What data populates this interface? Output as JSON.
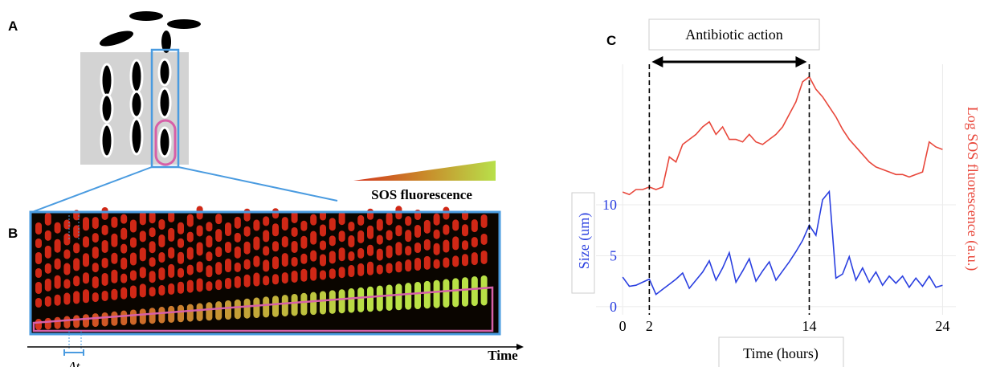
{
  "figure": {
    "panel_a": "A",
    "panel_b": "B",
    "panel_c": "C",
    "legend_label": "SOS fluorescence",
    "time_label": "Time",
    "interval_label": "Δt"
  },
  "chart_data": {
    "type": "line",
    "annotation": "Antibiotic action",
    "x_label": "Time (hours)",
    "y_label": "Size (um)",
    "y2_label": "Log SOS fluorescence (a.u.)",
    "x": [
      0,
      0.5,
      1,
      1.5,
      2,
      2.5,
      3,
      3.5,
      4,
      4.5,
      5,
      5.5,
      6,
      6.5,
      7,
      7.5,
      8,
      8.5,
      9,
      9.5,
      10,
      10.5,
      11,
      11.5,
      12,
      12.5,
      13,
      13.5,
      14,
      14.5,
      15,
      15.5,
      16,
      16.5,
      17,
      17.5,
      18,
      18.5,
      19,
      19.5,
      20,
      20.5,
      21,
      21.5,
      22,
      22.5,
      23,
      23.5,
      24
    ],
    "series": [
      {
        "color": "#2a3fe0",
        "axis": "y",
        "values": [
          2.9,
          2.0,
          2.1,
          2.4,
          2.7,
          1.2,
          1.7,
          2.2,
          2.7,
          3.3,
          1.8,
          2.6,
          3.4,
          4.5,
          2.6,
          3.8,
          5.3,
          2.4,
          3.5,
          4.7,
          2.5,
          3.5,
          4.4,
          2.6,
          3.5,
          4.4,
          5.4,
          6.5,
          8.0,
          7.0,
          10.5,
          11.3,
          2.8,
          3.2,
          4.9,
          2.6,
          3.8,
          2.4,
          3.4,
          2.1,
          3.0,
          2.3,
          3.0,
          1.9,
          2.8,
          2.0,
          3.0,
          1.9,
          2.1
        ]
      },
      {
        "color": "#e8473b",
        "axis": "y2",
        "values": [
          4.9,
          4.8,
          5.0,
          5.0,
          5.1,
          5.0,
          5.1,
          6.3,
          6.1,
          6.8,
          7.0,
          7.2,
          7.5,
          7.7,
          7.2,
          7.5,
          7.0,
          7.0,
          6.9,
          7.2,
          6.9,
          6.8,
          7.0,
          7.2,
          7.5,
          8.0,
          8.5,
          9.3,
          9.5,
          9.0,
          8.7,
          8.3,
          7.9,
          7.4,
          7.0,
          6.7,
          6.4,
          6.1,
          5.9,
          5.8,
          5.7,
          5.6,
          5.6,
          5.5,
          5.6,
          5.7,
          6.9,
          6.7,
          6.6
        ]
      }
    ],
    "xlim": [
      -2,
      25
    ],
    "xticks": [
      0,
      2,
      14,
      24
    ],
    "ylim": [
      -0.8,
      23.8
    ],
    "yticks": [
      0,
      5,
      10
    ],
    "y2lim": [
      0,
      10
    ],
    "vlines": [
      2,
      14
    ],
    "grid": true
  }
}
